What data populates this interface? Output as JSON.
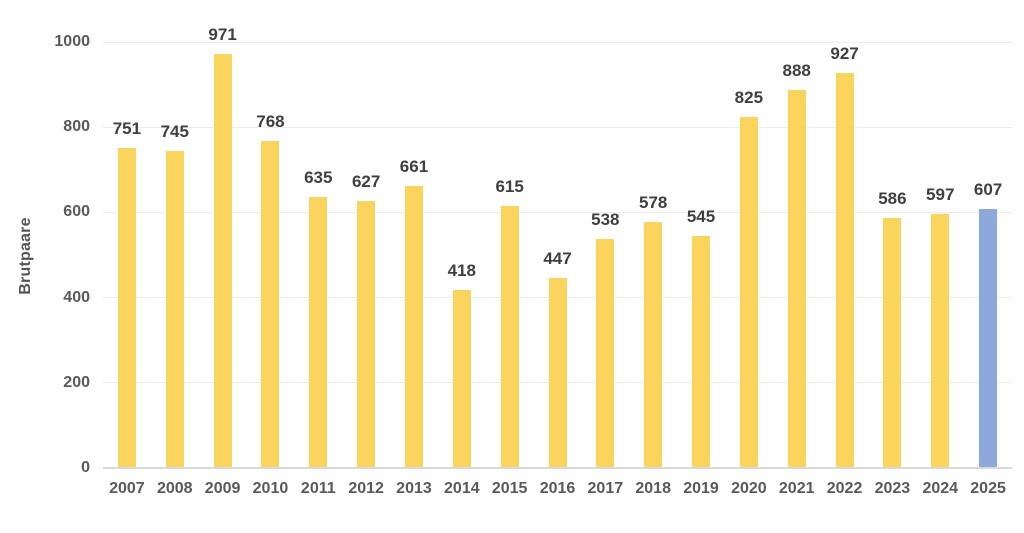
{
  "chart_data": {
    "type": "bar",
    "title": "",
    "xlabel": "",
    "ylabel": "Brutpaare",
    "categories": [
      "2007",
      "2008",
      "2009",
      "2010",
      "2011",
      "2012",
      "2013",
      "2014",
      "2015",
      "2016",
      "2017",
      "2018",
      "2019",
      "2020",
      "2021",
      "2022",
      "2023",
      "2024",
      "2025"
    ],
    "values": [
      751,
      745,
      971,
      768,
      635,
      627,
      661,
      418,
      615,
      447,
      538,
      578,
      545,
      825,
      888,
      927,
      586,
      597,
      607
    ],
    "ylim": [
      0,
      1000
    ],
    "yticks": [
      0,
      200,
      400,
      600,
      800,
      1000
    ],
    "grid": "horizontal-major",
    "legend": "none",
    "data_labels": true,
    "highlight_index": 18,
    "colors": {
      "bar_default": "#fbd45e",
      "bar_highlight": "#8da9dc",
      "value_label": "#3f3f3f",
      "axis_label": "#595959",
      "gridline": "#ececec",
      "axis_line": "#d9d9d9",
      "background": "#ffffff"
    }
  }
}
